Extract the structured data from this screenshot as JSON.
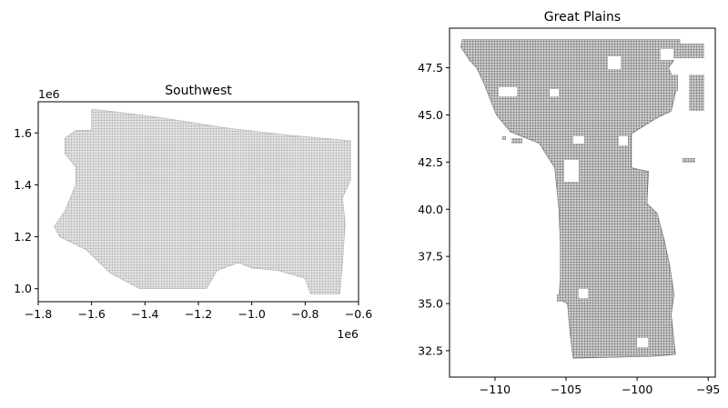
{
  "chart_data": [
    {
      "type": "map",
      "title": "Southwest",
      "xlim": [
        -1.8,
        -0.6
      ],
      "ylim": [
        0.95,
        1.72
      ],
      "x_ticks": [
        -1.8,
        -1.6,
        -1.4,
        -1.2,
        -1.0,
        -0.8,
        -0.6
      ],
      "x_tick_labels": [
        "−1.8",
        "−1.6",
        "−1.4",
        "−1.2",
        "−1.0",
        "−0.8",
        "−0.6"
      ],
      "y_ticks": [
        1.0,
        1.2,
        1.4,
        1.6
      ],
      "y_tick_labels": [
        "1.0",
        "1.2",
        "1.4",
        "1.6"
      ],
      "x_offset_label": "1e6",
      "y_offset_label": "1e6",
      "grid": false,
      "fill_color": "#bdbdbd",
      "region_outline": [
        [
          -1.59,
          1.69
        ],
        [
          -1.5,
          1.68
        ],
        [
          -1.35,
          1.66
        ],
        [
          -1.1,
          1.62
        ],
        [
          -0.85,
          1.59
        ],
        [
          -0.63,
          1.57
        ],
        [
          -0.63,
          1.42
        ],
        [
          -0.66,
          1.35
        ],
        [
          -0.65,
          1.25
        ],
        [
          -0.66,
          1.1
        ],
        [
          -0.67,
          0.98
        ],
        [
          -0.78,
          0.98
        ],
        [
          -0.8,
          1.04
        ],
        [
          -0.9,
          1.07
        ],
        [
          -1.0,
          1.08
        ],
        [
          -1.05,
          1.1
        ],
        [
          -1.13,
          1.07
        ],
        [
          -1.17,
          1.0
        ],
        [
          -1.3,
          1.0
        ],
        [
          -1.42,
          1.0
        ],
        [
          -1.53,
          1.06
        ],
        [
          -1.62,
          1.15
        ],
        [
          -1.72,
          1.2
        ],
        [
          -1.74,
          1.24
        ],
        [
          -1.7,
          1.3
        ],
        [
          -1.66,
          1.4
        ],
        [
          -1.66,
          1.47
        ],
        [
          -1.7,
          1.52
        ],
        [
          -1.7,
          1.58
        ],
        [
          -1.66,
          1.61
        ],
        [
          -1.6,
          1.61
        ],
        [
          -1.6,
          1.69
        ]
      ]
    },
    {
      "type": "map",
      "title": "Great Plains",
      "xlim": [
        -113.2,
        -94.5
      ],
      "ylim": [
        31.1,
        49.6
      ],
      "x_ticks": [
        -110,
        -105,
        -100,
        -95
      ],
      "x_tick_labels": [
        "−110",
        "−105",
        "−100",
        "−95"
      ],
      "y_ticks": [
        32.5,
        35.0,
        37.5,
        40.0,
        42.5,
        45.0,
        47.5
      ],
      "y_tick_labels": [
        "32.5",
        "35.0",
        "37.5",
        "40.0",
        "42.5",
        "45.0",
        "47.5"
      ],
      "grid": false,
      "fill_color": "#7f7f7f",
      "region_outline": [
        [
          -112.3,
          49.0
        ],
        [
          -97.0,
          49.0
        ],
        [
          -97.0,
          48.3
        ],
        [
          -97.8,
          47.5
        ],
        [
          -97.2,
          46.5
        ],
        [
          -97.6,
          45.2
        ],
        [
          -98.7,
          44.8
        ],
        [
          -100.4,
          44.0
        ],
        [
          -100.4,
          42.2
        ],
        [
          -99.2,
          42.0
        ],
        [
          -99.3,
          40.3
        ],
        [
          -98.6,
          39.8
        ],
        [
          -98.1,
          38.4
        ],
        [
          -97.7,
          37.0
        ],
        [
          -97.4,
          35.5
        ],
        [
          -97.6,
          34.4
        ],
        [
          -97.3,
          32.3
        ],
        [
          -99.0,
          32.2
        ],
        [
          -104.5,
          32.1
        ],
        [
          -104.7,
          33.3
        ],
        [
          -104.9,
          35.0
        ],
        [
          -105.5,
          35.2
        ],
        [
          -105.4,
          36.5
        ],
        [
          -105.4,
          38.0
        ],
        [
          -105.5,
          40.0
        ],
        [
          -105.8,
          42.2
        ],
        [
          -106.9,
          43.5
        ],
        [
          -108.9,
          44.1
        ],
        [
          -109.9,
          45.0
        ],
        [
          -110.8,
          46.7
        ],
        [
          -111.3,
          47.5
        ],
        [
          -111.8,
          47.9
        ],
        [
          -112.4,
          48.6
        ]
      ]
    }
  ]
}
